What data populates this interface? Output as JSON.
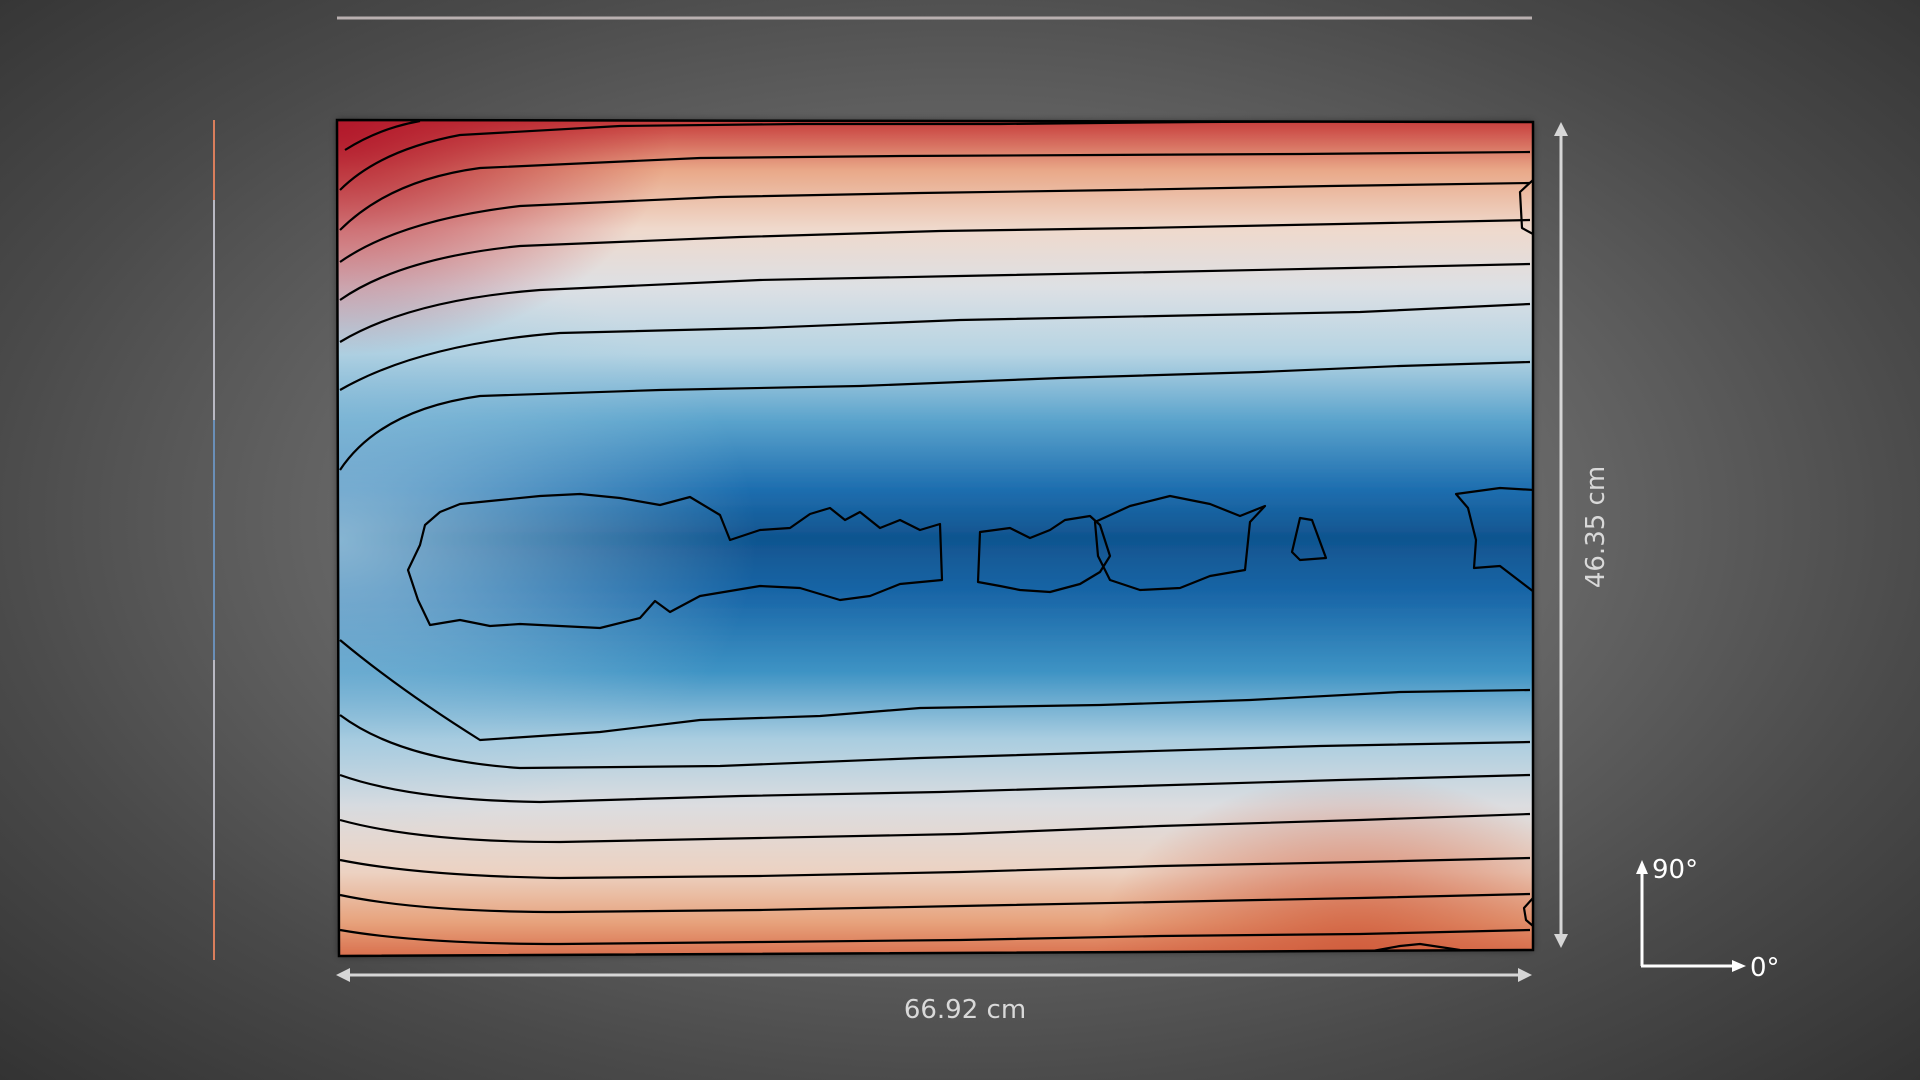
{
  "dimensions": {
    "width_label": "66.92 cm",
    "height_label": "46.35 cm"
  },
  "orientation": {
    "vertical_label": "90°",
    "horizontal_label": "0°"
  },
  "colormap": {
    "name": "diverging red-white-blue",
    "high_color": "#b2182b",
    "mid_color": "#e6e6e6",
    "low_color": "#0b4f8f"
  }
}
